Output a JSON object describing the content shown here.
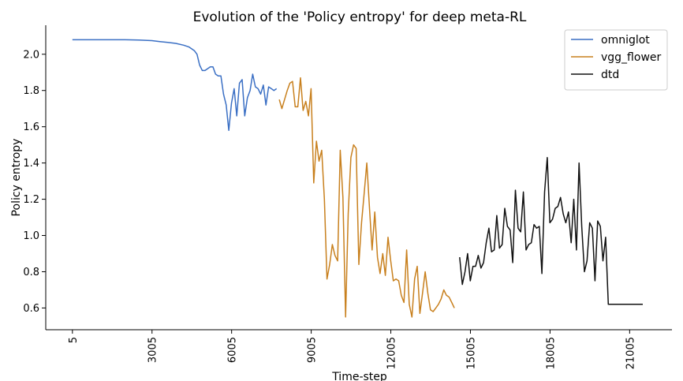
{
  "chart_data": {
    "type": "line",
    "title": "Evolution of the 'Policy entropy' for deep meta-RL",
    "xlabel": "Time-step",
    "ylabel": "Policy entropy",
    "xlim": [
      -1000,
      22600
    ],
    "ylim": [
      0.48,
      2.16
    ],
    "xticks": [
      5,
      3005,
      6005,
      9005,
      12005,
      15005,
      18005,
      21005
    ],
    "xtick_labels": [
      "5",
      "3005",
      "6005",
      "9005",
      "12005",
      "15005",
      "18005",
      "21005"
    ],
    "yticks": [
      0.6,
      0.8,
      1.0,
      1.2,
      1.4,
      1.6,
      1.8,
      2.0
    ],
    "ytick_labels": [
      "0.6",
      "0.8",
      "1.0",
      "1.2",
      "1.4",
      "1.6",
      "1.8",
      "2.0"
    ],
    "grid": false,
    "legend_position": "top-right",
    "series": [
      {
        "name": "omniglot",
        "color": "#3a6fc4",
        "x": [
          5,
          500,
          1000,
          1500,
          2000,
          2500,
          3000,
          3300,
          3600,
          3900,
          4200,
          4400,
          4500,
          4600,
          4700,
          4800,
          4900,
          5000,
          5100,
          5200,
          5300,
          5400,
          5500,
          5600,
          5700,
          5800,
          5900,
          6000,
          6100,
          6200,
          6300,
          6400,
          6500,
          6600,
          6700,
          6800,
          6900,
          7000,
          7100,
          7200,
          7300,
          7400,
          7500,
          7600,
          7700
        ],
        "y": [
          2.08,
          2.08,
          2.08,
          2.08,
          2.08,
          2.078,
          2.075,
          2.07,
          2.065,
          2.06,
          2.05,
          2.04,
          2.03,
          2.02,
          2.0,
          1.94,
          1.91,
          1.91,
          1.92,
          1.93,
          1.93,
          1.89,
          1.88,
          1.88,
          1.78,
          1.72,
          1.58,
          1.73,
          1.81,
          1.66,
          1.84,
          1.86,
          1.66,
          1.76,
          1.8,
          1.89,
          1.82,
          1.81,
          1.78,
          1.83,
          1.72,
          1.82,
          1.81,
          1.8,
          1.81
        ]
      },
      {
        "name": "vgg_flower",
        "color": "#c8801e",
        "x": [
          7800,
          7900,
          8000,
          8100,
          8200,
          8300,
          8400,
          8500,
          8600,
          8700,
          8800,
          8900,
          9000,
          9100,
          9200,
          9300,
          9400,
          9500,
          9600,
          9700,
          9800,
          9900,
          10000,
          10100,
          10200,
          10300,
          10400,
          10500,
          10600,
          10700,
          10800,
          10900,
          11000,
          11100,
          11200,
          11300,
          11400,
          11500,
          11600,
          11700,
          11800,
          11900,
          12000,
          12100,
          12200,
          12300,
          12400,
          12500,
          12600,
          12700,
          12800,
          12900,
          13000,
          13100,
          13200,
          13300,
          13400,
          13500,
          13600,
          13700,
          13800,
          13900,
          14000,
          14100,
          14200,
          14300,
          14400
        ],
        "y": [
          1.75,
          1.7,
          1.75,
          1.8,
          1.84,
          1.85,
          1.71,
          1.71,
          1.87,
          1.69,
          1.74,
          1.66,
          1.81,
          1.29,
          1.52,
          1.41,
          1.47,
          1.2,
          0.76,
          0.84,
          0.95,
          0.89,
          0.86,
          1.47,
          1.21,
          0.55,
          1.12,
          1.43,
          1.5,
          1.48,
          0.84,
          1.07,
          1.23,
          1.4,
          1.15,
          0.92,
          1.13,
          0.88,
          0.79,
          0.9,
          0.78,
          0.99,
          0.86,
          0.75,
          0.76,
          0.75,
          0.67,
          0.63,
          0.92,
          0.62,
          0.55,
          0.76,
          0.83,
          0.57,
          0.68,
          0.8,
          0.68,
          0.59,
          0.58,
          0.6,
          0.62,
          0.65,
          0.7,
          0.67,
          0.66,
          0.63,
          0.6
        ]
      },
      {
        "name": "dtd",
        "color": "#111111",
        "x": [
          14600,
          14700,
          14800,
          14900,
          15000,
          15100,
          15200,
          15300,
          15400,
          15500,
          15600,
          15700,
          15800,
          15900,
          16000,
          16100,
          16200,
          16300,
          16400,
          16500,
          16600,
          16700,
          16800,
          16900,
          17000,
          17100,
          17200,
          17300,
          17400,
          17500,
          17600,
          17700,
          17800,
          17900,
          18000,
          18100,
          18200,
          18300,
          18400,
          18500,
          18600,
          18700,
          18800,
          18900,
          19000,
          19100,
          19200,
          19300,
          19400,
          19500,
          19600,
          19700,
          19800,
          19900,
          20000,
          20100,
          20200,
          20300,
          20400,
          20500,
          20600,
          20700,
          20800,
          20900,
          21000,
          21100,
          21200,
          21300,
          21400,
          21500
        ],
        "y": [
          0.88,
          0.73,
          0.8,
          0.9,
          0.75,
          0.83,
          0.83,
          0.89,
          0.82,
          0.85,
          0.96,
          1.04,
          0.91,
          0.92,
          1.11,
          0.93,
          0.95,
          1.15,
          1.05,
          1.03,
          0.85,
          1.25,
          1.04,
          1.02,
          1.24,
          0.92,
          0.95,
          0.96,
          1.06,
          1.04,
          1.05,
          0.79,
          1.24,
          1.43,
          1.07,
          1.09,
          1.15,
          1.16,
          1.21,
          1.12,
          1.07,
          1.13,
          0.96,
          1.2,
          0.92,
          1.4,
          1.05,
          0.8,
          0.86,
          1.07,
          1.04,
          0.75,
          1.08,
          1.05,
          0.86,
          0.99,
          0.62,
          0.62,
          0.62,
          0.62,
          0.62,
          0.62,
          0.62,
          0.62,
          0.62,
          0.62,
          0.62,
          0.62,
          0.62,
          0.62
        ]
      }
    ]
  }
}
